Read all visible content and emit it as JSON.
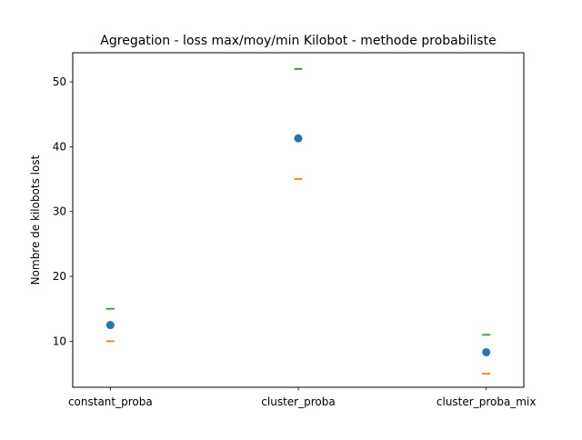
{
  "chart_data": {
    "type": "scatter",
    "title": "Agregation - loss max/moy/min Kilobot - methode probabiliste",
    "xlabel": "",
    "ylabel": "Nombre de kilobots lost",
    "categories": [
      "constant_proba",
      "cluster_proba",
      "cluster_proba_mix"
    ],
    "ylim": [
      2.9,
      54.5
    ],
    "yticks": [
      10,
      20,
      30,
      40,
      50
    ],
    "grid": false,
    "series": [
      {
        "role": "mean",
        "marker": "circle",
        "color": "#1f77b4",
        "values": [
          12.5,
          41.3,
          8.3
        ]
      },
      {
        "role": "min",
        "marker": "hline",
        "color": "#ff7f0e",
        "values": [
          10,
          35,
          5
        ]
      },
      {
        "role": "max",
        "marker": "hline",
        "color": "#2ca02c",
        "values": [
          15,
          52,
          11
        ]
      }
    ]
  }
}
